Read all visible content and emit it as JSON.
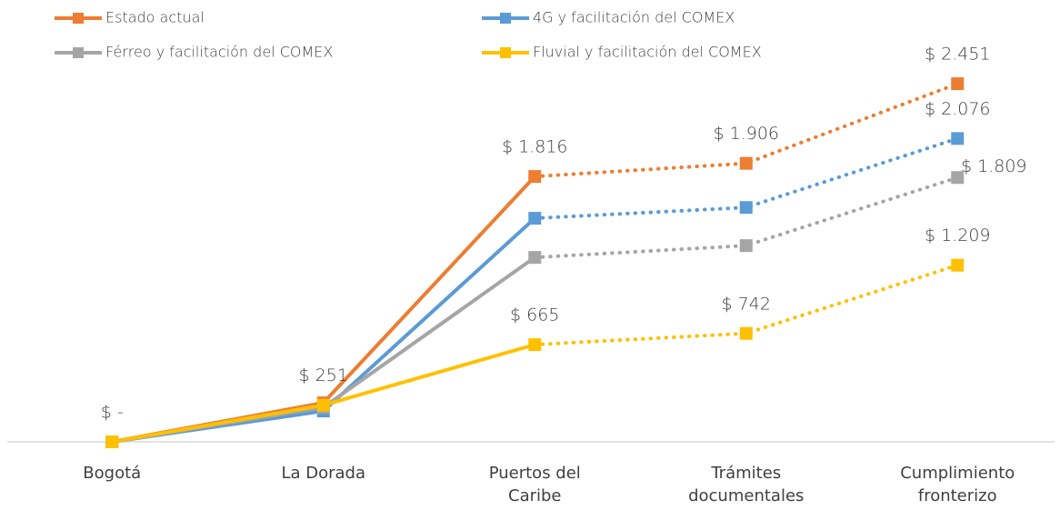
{
  "chart_data": {
    "type": "line",
    "categories": [
      "Bogotá",
      "La Dorada",
      "Puertos del Caribe",
      "Trámites documentales",
      "Cumplimiento fronterizo"
    ],
    "series": [
      {
        "name": "Estado actual",
        "color": "#ED7D31",
        "values": [
          0,
          267,
          1816,
          1906,
          2451
        ],
        "value_labels": [
          null,
          null,
          "$ 1.816",
          "$ 1.906",
          "$ 2.451"
        ]
      },
      {
        "name": "4G y facilitación del COMEX",
        "color": "#5B9BD5",
        "values": [
          0,
          211,
          1530,
          1604,
          2076
        ],
        "value_labels": [
          null,
          null,
          null,
          null,
          "$ 2.076"
        ]
      },
      {
        "name": "Férreo y facilitación del COMEX",
        "color": "#A5A5A5",
        "values": [
          0,
          236,
          1262,
          1343,
          1809
        ],
        "value_labels": [
          null,
          null,
          null,
          null,
          "$ 1.809"
        ]
      },
      {
        "name": "Fluvial y facilitación del COMEX",
        "color": "#FFC000",
        "values": [
          0,
          251,
          665,
          742,
          1209
        ],
        "value_labels": [
          "$ -",
          "$ 251",
          "$ 665",
          "$ 742",
          "$ 1.209"
        ]
      }
    ],
    "ylim": [
      0,
      2800
    ]
  }
}
